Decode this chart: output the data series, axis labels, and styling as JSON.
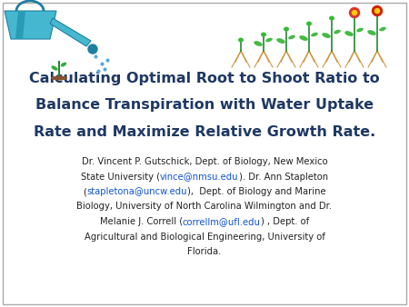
{
  "background_color": "#ffffff",
  "border_color": "#aaaaaa",
  "title_lines": [
    "Calculating Optimal Root to Shoot Ratio to",
    "Balance Transpiration with Water Uptake",
    "Rate and Maximize Relative Growth Rate."
  ],
  "title_color": "#1F3864",
  "title_fontsize": 11.5,
  "title_fontweight": "bold",
  "body_color": "#222222",
  "body_link_color": "#1155CC",
  "body_fontsize": 7.2,
  "fig_width": 4.5,
  "fig_height": 3.38,
  "dpi": 100
}
